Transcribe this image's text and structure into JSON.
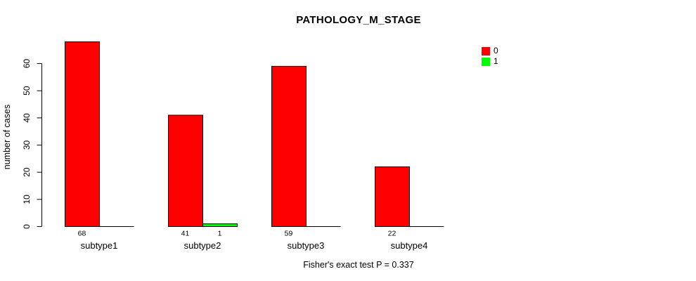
{
  "chart_data": {
    "type": "bar",
    "title": "PATHOLOGY_M_STAGE",
    "xlabel": "",
    "ylabel": "number of cases",
    "footnote": "Fisher's exact test P = 0.337",
    "categories": [
      "subtype1",
      "subtype2",
      "subtype3",
      "subtype4"
    ],
    "series": [
      {
        "name": "0",
        "color": "#FF0000",
        "values": [
          68,
          41,
          59,
          22
        ]
      },
      {
        "name": "1",
        "color": "#00FF00",
        "values": [
          0,
          1,
          0,
          0
        ]
      }
    ],
    "ylim": [
      0,
      60
    ],
    "yticks": [
      0,
      10,
      20,
      30,
      40,
      50,
      60
    ],
    "grid": false,
    "legend_position": "top-right",
    "bar_value_labels": true,
    "bar_border_color": "#000000",
    "ytick_label_rotation_deg": 90
  }
}
